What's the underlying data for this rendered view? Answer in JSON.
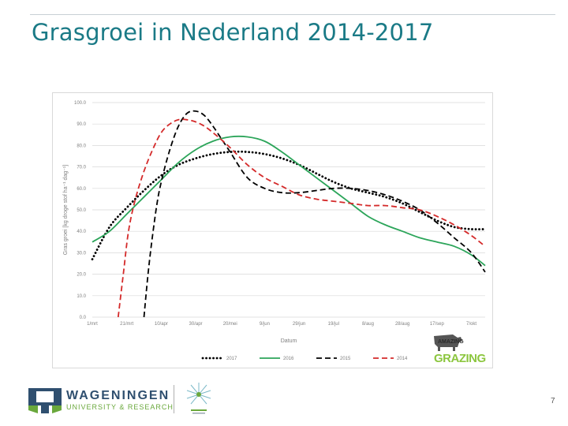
{
  "slide": {
    "title": "Grasgroei in Nederland 2014-2017",
    "page_number": "7"
  },
  "logos": {
    "amazing_line1": "AMAZING",
    "amazing_line2": "GRAZING",
    "wur_name": "WAGENINGEN",
    "wur_sub": "UNIVERSITY & RESEARCH"
  },
  "colors": {
    "title": "#1a7a86",
    "s2017": "#000000",
    "s2016": "#2ca55a",
    "s2015": "#000000",
    "s2014": "#d42a2a",
    "grid": "#d9d9d9",
    "grazing_green": "#8cc63f"
  },
  "chart_data": {
    "type": "line",
    "xlabel": "Datum",
    "ylabel": "Gras groei [kg droge stof ha⁻¹ dag⁻¹]",
    "ylim": [
      0,
      100
    ],
    "y_ticks": [
      "0.0",
      "10.0",
      "20.0",
      "30.0",
      "40.0",
      "50.0",
      "60.0",
      "70.0",
      "80.0",
      "90.0",
      "100.0"
    ],
    "x_ticks": [
      "1/mrt",
      "21/mrt",
      "10/apr",
      "30/apr",
      "20/mei",
      "9/jun",
      "29/jun",
      "19/jul",
      "8/aug",
      "28/aug",
      "17/sep",
      "7/okt"
    ],
    "x_tick_days": [
      0,
      20,
      40,
      60,
      80,
      100,
      120,
      140,
      160,
      180,
      200,
      220
    ],
    "x_domain_days": [
      0,
      228
    ],
    "grid": true,
    "legend_position": "bottom",
    "series": [
      {
        "name": "2017",
        "style": "dotted",
        "color": "#000000",
        "x_days": [
          0,
          10,
          20,
          30,
          40,
          50,
          60,
          70,
          80,
          90,
          100,
          110,
          120,
          130,
          140,
          150,
          160,
          170,
          180,
          190,
          200,
          210,
          220,
          228
        ],
        "values": [
          27,
          42,
          51,
          59,
          66,
          71,
          74,
          76,
          77,
          77,
          76,
          74,
          71,
          67,
          63,
          60,
          58,
          56,
          53,
          49,
          45,
          42,
          41,
          41
        ]
      },
      {
        "name": "2016",
        "style": "solid",
        "color": "#2ca55a",
        "x_days": [
          0,
          10,
          20,
          30,
          40,
          50,
          60,
          70,
          80,
          90,
          100,
          110,
          120,
          130,
          140,
          150,
          160,
          170,
          180,
          190,
          200,
          210,
          220,
          228
        ],
        "values": [
          35,
          40,
          48,
          56,
          64,
          72,
          78,
          82,
          84,
          84,
          82,
          77,
          71,
          65,
          59,
          53,
          47,
          43,
          40,
          37,
          35,
          33,
          29,
          24
        ]
      },
      {
        "name": "2015",
        "style": "dashed",
        "color": "#000000",
        "x_days": [
          30,
          33,
          37,
          40,
          45,
          50,
          55,
          60,
          65,
          70,
          75,
          80,
          90,
          100,
          110,
          120,
          130,
          140,
          150,
          160,
          170,
          180,
          190,
          200,
          210,
          220,
          228
        ],
        "values": [
          0,
          25,
          50,
          63,
          78,
          89,
          95,
          96,
          94,
          89,
          83,
          77,
          65,
          60,
          58,
          58,
          59,
          60,
          60,
          59,
          57,
          54,
          50,
          44,
          37,
          30,
          21
        ]
      },
      {
        "name": "2014",
        "style": "dashed",
        "color": "#d42a2a",
        "x_days": [
          15,
          18,
          21,
          25,
          30,
          35,
          40,
          45,
          50,
          55,
          60,
          65,
          70,
          80,
          90,
          100,
          110,
          120,
          130,
          140,
          150,
          160,
          170,
          180,
          190,
          200,
          210,
          220,
          228
        ],
        "values": [
          0,
          20,
          40,
          55,
          68,
          78,
          86,
          90,
          92,
          92,
          91,
          89,
          86,
          79,
          71,
          65,
          61,
          57,
          55,
          54,
          53,
          52,
          52,
          51,
          50,
          47,
          43,
          38,
          33
        ]
      }
    ]
  }
}
